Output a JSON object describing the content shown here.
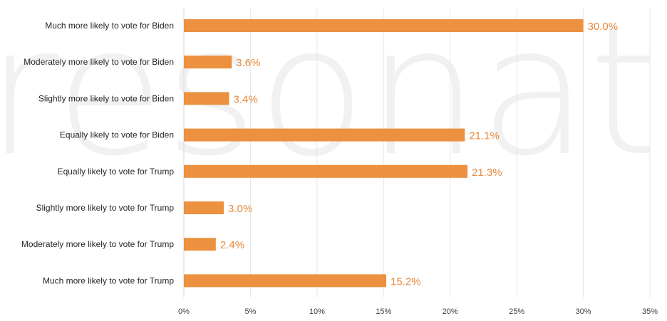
{
  "watermark": {
    "text": "resonate"
  },
  "colors": {
    "bar": "#ec9140",
    "label": "#e8893b",
    "grid": "#e6e6e6"
  },
  "chart_data": {
    "type": "bar",
    "orientation": "horizontal",
    "title": "",
    "xlabel": "",
    "ylabel": "",
    "categories": [
      "Much more likely to vote for Biden",
      "Moderately more likely to vote for Biden",
      "Slightly more likely to vote for Biden",
      "Equally likely to vote for Biden",
      "Equally likely to vote for Trump",
      "Slightly more likely to vote for Trump",
      "Moderately more likely to vote for Trump",
      "Much more likely to vote for Trump"
    ],
    "values": [
      30.0,
      3.6,
      3.4,
      21.1,
      21.3,
      3.0,
      2.4,
      15.2
    ],
    "value_labels": [
      "30.0%",
      "3.6%",
      "3.4%",
      "21.1%",
      "21.3%",
      "3.0%",
      "2.4%",
      "15.2%"
    ],
    "xlim": [
      0,
      35
    ],
    "xticks": [
      0,
      5,
      10,
      15,
      20,
      25,
      30,
      35
    ],
    "xtick_labels": [
      "0%",
      "5%",
      "10%",
      "15%",
      "20%",
      "25%",
      "30%",
      "35%"
    ],
    "grid": true,
    "legend": "none"
  }
}
